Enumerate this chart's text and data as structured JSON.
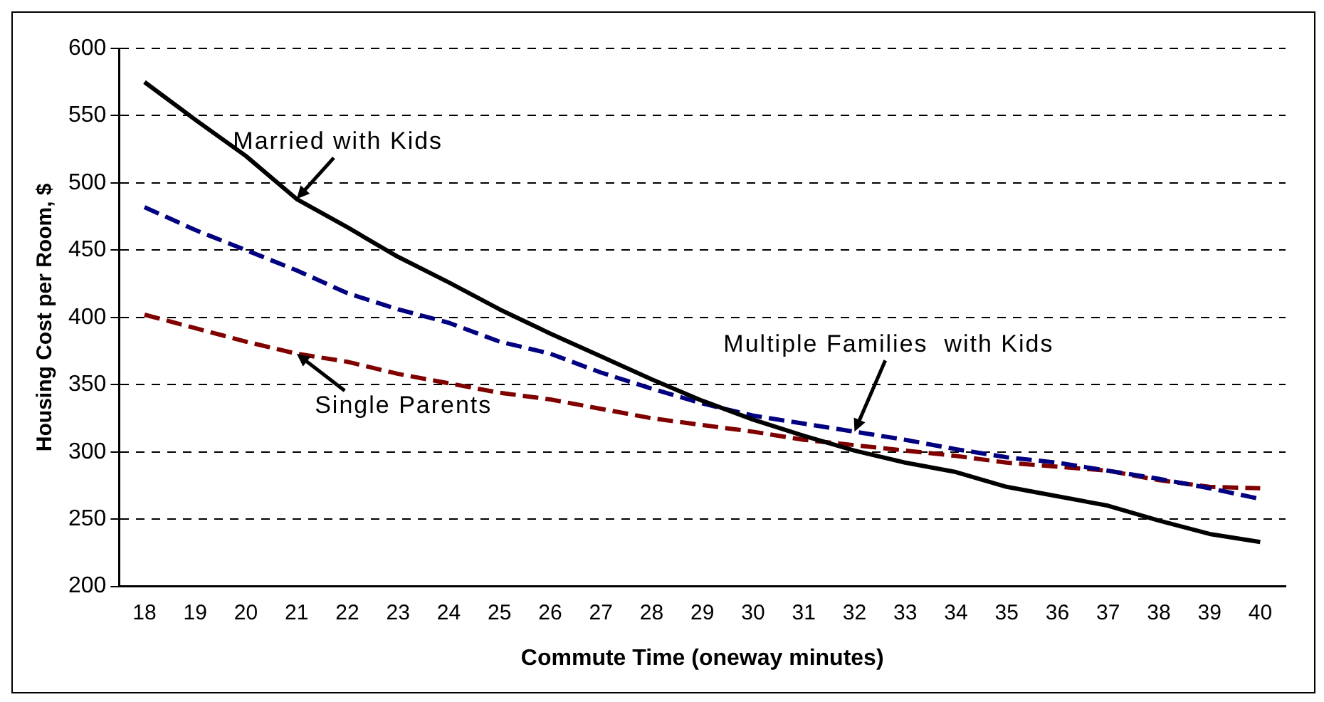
{
  "chart_data": {
    "type": "line",
    "xlabel": "Commute Time (oneway minutes)",
    "ylabel": "Housing Cost per Room, $",
    "categories": [
      "18",
      "19",
      "20",
      "21",
      "22",
      "23",
      "24",
      "25",
      "26",
      "27",
      "28",
      "29",
      "30",
      "31",
      "32",
      "33",
      "34",
      "35",
      "36",
      "37",
      "38",
      "39",
      "40"
    ],
    "series": [
      {
        "color": "#000000",
        "line_style": "solid",
        "values": [
          575,
          547,
          520,
          488,
          467,
          445,
          426,
          406,
          388,
          371,
          354,
          338,
          324,
          312,
          301,
          292,
          285,
          274,
          267,
          260,
          249,
          239,
          233
        ]
      },
      {
        "color": "#000080",
        "line_style": "dashed",
        "values": [
          482,
          465,
          450,
          435,
          418,
          406,
          396,
          382,
          373,
          359,
          347,
          336,
          327,
          321,
          315,
          309,
          302,
          296,
          292,
          286,
          280,
          273,
          265
        ]
      },
      {
        "color": "#800000",
        "line_style": "dashed",
        "values": [
          402,
          392,
          382,
          373,
          367,
          358,
          351,
          344,
          339,
          332,
          325,
          320,
          315,
          309,
          305,
          301,
          297,
          292,
          289,
          286,
          279,
          274,
          273
        ]
      }
    ],
    "ylim": [
      200,
      600
    ],
    "yticks": [
      200,
      250,
      300,
      350,
      400,
      450,
      500,
      550,
      600
    ],
    "grid": "y",
    "legend": false,
    "marker": "none",
    "annotations": [
      {
        "text": "Married with Kids",
        "x": "21",
        "y": 488
      },
      {
        "text": "Multiple Families  with Kids",
        "x": "32",
        "y": 315
      },
      {
        "text": "Single Parents",
        "x": "21",
        "y": 373
      }
    ]
  }
}
